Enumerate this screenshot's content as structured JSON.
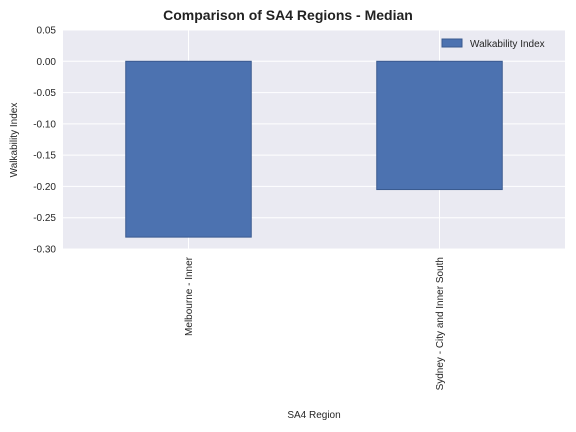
{
  "chart_data": {
    "type": "bar",
    "title": "Comparison of SA4 Regions - Median",
    "xlabel": "SA4 Region",
    "ylabel": "Walkability Index",
    "categories": [
      "Melbourne - Inner",
      "Sydney - City and Inner South"
    ],
    "series": [
      {
        "name": "Walkability Index",
        "values": [
          -0.281,
          -0.205
        ]
      }
    ],
    "ylim": [
      -0.3,
      0.05
    ],
    "yticks": [
      "-0.30",
      "-0.25",
      "-0.20",
      "-0.15",
      "-0.10",
      "-0.05",
      "0.00",
      "0.05"
    ],
    "grid": true,
    "legend": "top-right",
    "colors": {
      "bar": "#4c72b0",
      "bar_edge": "#3a5a8f",
      "plot_bg": "#eaeaf2",
      "grid": "#ffffff"
    }
  }
}
